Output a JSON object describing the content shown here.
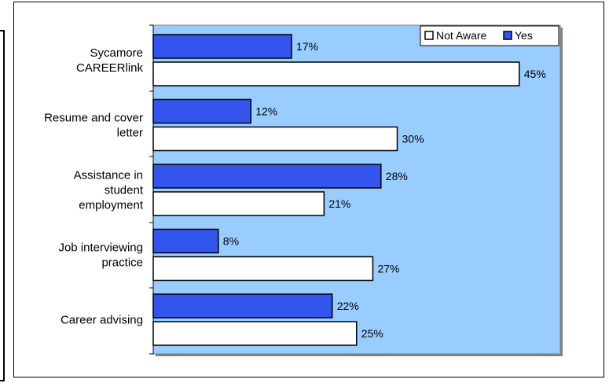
{
  "chart_data": {
    "type": "bar",
    "orientation": "horizontal",
    "categories": [
      [
        "Sycamore",
        "CAREERlink"
      ],
      [
        "Resume and cover",
        "letter"
      ],
      [
        "Assistance in",
        "student",
        "employment"
      ],
      [
        "Job interviewing",
        "practice"
      ],
      [
        "Career advising"
      ]
    ],
    "series": [
      {
        "name": "Yes",
        "values": [
          17,
          12,
          28,
          8,
          22
        ],
        "color": "#3355ee"
      },
      {
        "name": "Not Aware",
        "values": [
          45,
          30,
          21,
          27,
          25
        ],
        "color": "#ffffff"
      }
    ],
    "value_suffix": "%",
    "xlim": [
      0,
      50
    ],
    "legend_order": [
      "Not Aware",
      "Yes"
    ],
    "legend_placement": "top-right",
    "plot_background": "#99ccff",
    "grid": false
  }
}
